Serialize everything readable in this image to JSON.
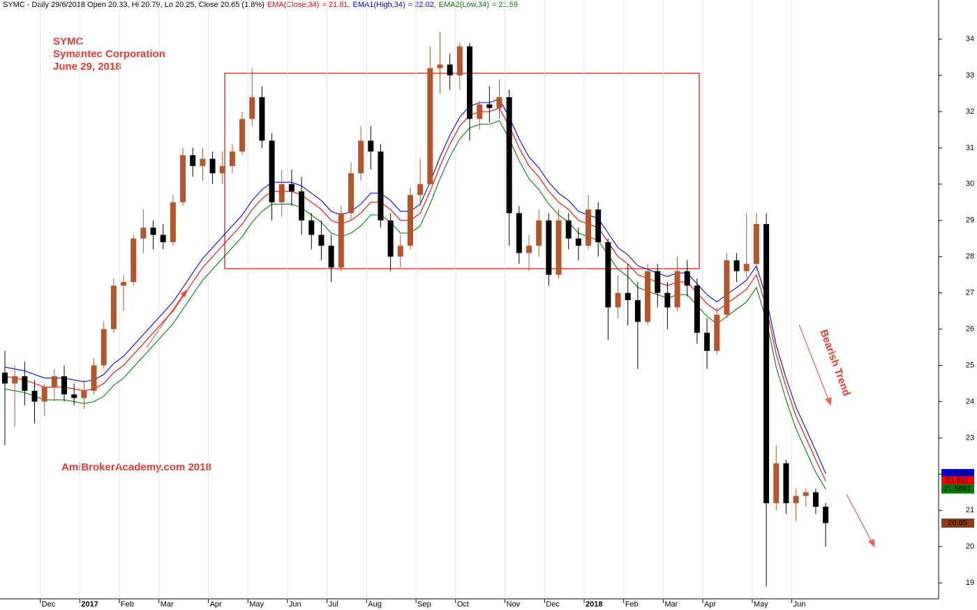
{
  "chart_data": {
    "type": "candlestick",
    "header": "SYMC - Daily 29/6/2018 Open 20.33, Hi 20.79, Lo 20.25, Close 20.65 (1.8%)",
    "annotations": [
      "SYMC",
      "Symantec Corporation",
      "June 29, 2018",
      "AmiBrokerAcademy.com  2018",
      "Bearish Trend"
    ],
    "categories": [
      null,
      null,
      null,
      null,
      "Dec",
      null,
      null,
      null,
      "2017",
      null,
      null,
      null,
      "Feb",
      null,
      null,
      null,
      "Mar",
      null,
      null,
      null,
      null,
      "Apr",
      null,
      null,
      null,
      "May",
      null,
      null,
      null,
      "Jun",
      null,
      null,
      null,
      "Jul",
      null,
      null,
      null,
      "Aug",
      null,
      null,
      null,
      null,
      "Sep",
      null,
      null,
      null,
      "Oct",
      null,
      null,
      null,
      null,
      "Nov",
      null,
      null,
      null,
      "Dec",
      null,
      null,
      null,
      "2018",
      null,
      null,
      null,
      "Feb",
      null,
      null,
      null,
      "Mar",
      null,
      null,
      null,
      "Apr",
      null,
      null,
      null,
      null,
      "May",
      null,
      null,
      null,
      "Jun",
      null,
      null,
      null
    ],
    "up_color": "#b5562a",
    "down_color": "#000000",
    "open": [
      24.8,
      24.5,
      24.7,
      24.3,
      24.0,
      24.4,
      24.7,
      24.2,
      24.1,
      24.3,
      25.0,
      26.0,
      27.2,
      27.3,
      28.5,
      28.8,
      28.6,
      28.4,
      29.5,
      30.8,
      30.5,
      30.7,
      30.3,
      30.5,
      30.9,
      31.8,
      32.4,
      31.2,
      29.5,
      30.0,
      29.8,
      29.0,
      28.6,
      28.3,
      27.7,
      29.2,
      30.3,
      31.2,
      30.9,
      29.0,
      28.0,
      28.3,
      29.7,
      30.0,
      33.2,
      33.3,
      33.0,
      33.8,
      31.8,
      32.2,
      32.1,
      32.4,
      29.2,
      28.1,
      28.3,
      29.0,
      27.5,
      29.0,
      28.5,
      28.3,
      29.3,
      28.4,
      26.6,
      27.0,
      26.8,
      26.2,
      27.6,
      27.0,
      26.6,
      27.6,
      27.2,
      25.9,
      25.4,
      26.4,
      27.9,
      27.6,
      27.8,
      28.9,
      21.2,
      22.3,
      21.2,
      21.4,
      21.5,
      21.1
    ],
    "high": [
      25.4,
      25.0,
      25.1,
      24.6,
      24.5,
      24.9,
      25.0,
      24.5,
      24.6,
      25.2,
      26.2,
      27.4,
      27.5,
      28.6,
      29.3,
      29.0,
      28.9,
      29.7,
      31.0,
      31.0,
      31.0,
      30.9,
      30.9,
      31.1,
      32.0,
      33.2,
      32.7,
      31.4,
      30.4,
      30.4,
      30.2,
      29.2,
      29.0,
      28.6,
      29.4,
      30.6,
      31.6,
      31.6,
      31.1,
      29.2,
      28.6,
      29.9,
      30.7,
      33.8,
      34.2,
      33.6,
      33.9,
      33.9,
      32.3,
      32.7,
      32.9,
      32.6,
      29.4,
      28.6,
      29.3,
      29.2,
      29.3,
      29.2,
      28.8,
      29.7,
      29.5,
      28.5,
      27.5,
      27.8,
      27.3,
      27.8,
      27.8,
      27.3,
      28.0,
      27.9,
      27.4,
      26.3,
      26.6,
      28.1,
      28.1,
      29.2,
      29.2,
      29.2,
      22.8,
      22.4,
      21.6,
      21.6,
      21.6,
      21.2
    ],
    "low": [
      22.8,
      23.3,
      23.9,
      23.4,
      23.6,
      24.0,
      24.0,
      23.9,
      23.8,
      24.2,
      24.9,
      25.9,
      26.5,
      27.2,
      28.1,
      28.2,
      28.2,
      28.3,
      29.4,
      30.2,
      30.1,
      30.0,
      30.0,
      30.3,
      30.8,
      31.6,
      31.0,
      29.0,
      29.1,
      29.4,
      28.6,
      28.2,
      27.9,
      27.3,
      27.6,
      29.0,
      30.1,
      30.4,
      28.8,
      27.6,
      27.7,
      28.2,
      29.4,
      30.0,
      32.5,
      32.6,
      32.6,
      31.2,
      31.5,
      31.7,
      31.8,
      28.3,
      27.8,
      27.6,
      28.0,
      27.2,
      27.4,
      28.2,
      27.9,
      28.2,
      28.0,
      25.7,
      26.3,
      26.1,
      24.9,
      26.1,
      26.6,
      26.0,
      26.5,
      26.9,
      25.6,
      24.9,
      25.3,
      26.3,
      27.3,
      27.4,
      27.6,
      18.9,
      21.0,
      20.9,
      20.7,
      21.1,
      20.9,
      20.0
    ],
    "close": [
      24.5,
      24.7,
      24.3,
      24.0,
      24.4,
      24.7,
      24.2,
      24.1,
      24.3,
      25.0,
      26.0,
      27.2,
      27.3,
      28.5,
      28.8,
      28.6,
      28.4,
      29.5,
      30.8,
      30.5,
      30.7,
      30.3,
      30.5,
      30.9,
      31.8,
      32.4,
      31.2,
      29.5,
      30.0,
      29.8,
      29.0,
      28.6,
      28.3,
      27.7,
      29.2,
      30.3,
      31.2,
      30.9,
      29.0,
      28.0,
      28.3,
      29.7,
      30.0,
      33.2,
      33.3,
      33.0,
      33.8,
      31.8,
      32.2,
      32.1,
      32.4,
      29.2,
      28.1,
      28.3,
      29.0,
      27.5,
      29.0,
      28.5,
      28.3,
      29.3,
      28.4,
      26.6,
      27.0,
      26.8,
      26.2,
      27.6,
      27.0,
      26.6,
      27.6,
      27.2,
      25.9,
      25.4,
      26.4,
      27.9,
      27.6,
      27.8,
      28.9,
      21.2,
      22.3,
      21.2,
      21.4,
      21.5,
      21.1,
      20.65
    ],
    "series": [
      {
        "name": "EMA(Close,34)",
        "legend_value": "= 21.81,",
        "color": "#ff0000",
        "values": [
          24.7,
          24.65,
          24.6,
          24.5,
          24.4,
          24.4,
          24.4,
          24.35,
          24.3,
          24.35,
          24.5,
          24.8,
          25.0,
          25.3,
          25.6,
          25.9,
          26.2,
          26.5,
          26.9,
          27.3,
          27.7,
          28.0,
          28.3,
          28.6,
          28.9,
          29.3,
          29.6,
          29.8,
          29.8,
          29.8,
          29.7,
          29.5,
          29.3,
          29.0,
          28.9,
          29.0,
          29.2,
          29.5,
          29.5,
          29.3,
          29.0,
          29.0,
          29.2,
          29.8,
          30.5,
          31.1,
          31.6,
          31.9,
          32.0,
          32.0,
          32.1,
          31.6,
          31.0,
          30.5,
          30.2,
          29.8,
          29.5,
          29.3,
          29.0,
          28.9,
          28.8,
          28.4,
          28.0,
          27.8,
          27.5,
          27.4,
          27.3,
          27.2,
          27.3,
          27.3,
          27.0,
          26.7,
          26.5,
          26.7,
          26.9,
          27.1,
          27.5,
          26.6,
          25.3,
          24.4,
          23.6,
          23.0,
          22.4,
          21.81
        ]
      },
      {
        "name": "EMA1(High,34)",
        "legend_value": "= 22.02,",
        "color": "#0000ff",
        "values": [
          24.95,
          24.9,
          24.85,
          24.75,
          24.65,
          24.65,
          24.65,
          24.6,
          24.55,
          24.6,
          24.75,
          25.05,
          25.25,
          25.55,
          25.85,
          26.15,
          26.45,
          26.75,
          27.15,
          27.55,
          27.95,
          28.25,
          28.55,
          28.85,
          29.15,
          29.55,
          29.85,
          30.05,
          30.05,
          30.05,
          29.95,
          29.75,
          29.55,
          29.25,
          29.15,
          29.25,
          29.45,
          29.75,
          29.75,
          29.55,
          29.25,
          29.25,
          29.45,
          30.05,
          30.75,
          31.35,
          31.85,
          32.15,
          32.25,
          32.25,
          32.35,
          31.85,
          31.25,
          30.75,
          30.45,
          30.05,
          29.75,
          29.55,
          29.25,
          29.15,
          29.05,
          28.65,
          28.25,
          28.05,
          27.75,
          27.65,
          27.55,
          27.45,
          27.55,
          27.55,
          27.25,
          26.95,
          26.75,
          26.95,
          27.15,
          27.35,
          27.75,
          26.85,
          25.55,
          24.65,
          23.85,
          23.25,
          22.65,
          22.02
        ]
      },
      {
        "name": "EMA2(Low,34)",
        "legend_value": "= 21.59",
        "color": "#008000",
        "values": [
          24.35,
          24.3,
          24.25,
          24.15,
          24.05,
          24.05,
          24.05,
          24.0,
          23.95,
          24.0,
          24.15,
          24.45,
          24.65,
          24.95,
          25.25,
          25.55,
          25.85,
          26.15,
          26.55,
          26.95,
          27.35,
          27.65,
          27.95,
          28.25,
          28.55,
          28.95,
          29.25,
          29.45,
          29.45,
          29.45,
          29.35,
          29.15,
          28.95,
          28.65,
          28.55,
          28.65,
          28.85,
          29.15,
          29.15,
          28.95,
          28.65,
          28.65,
          28.85,
          29.45,
          30.15,
          30.75,
          31.25,
          31.55,
          31.65,
          31.65,
          31.75,
          31.25,
          30.65,
          30.15,
          29.85,
          29.45,
          29.15,
          28.95,
          28.65,
          28.55,
          28.45,
          28.05,
          27.65,
          27.45,
          27.15,
          27.05,
          26.95,
          26.85,
          26.95,
          26.95,
          26.65,
          26.35,
          26.15,
          26.35,
          26.55,
          26.75,
          27.15,
          26.25,
          24.95,
          24.05,
          23.25,
          22.65,
          22.05,
          21.59
        ]
      }
    ],
    "last_labels": [
      {
        "value": 22.0164,
        "label": "22.0164",
        "color": "#0000ff"
      },
      {
        "value": 21.811,
        "label": "21.811",
        "color": "#ff0000"
      },
      {
        "value": 21.5881,
        "label": "21.5881",
        "color": "#008000"
      },
      {
        "value": 20.65,
        "label": "20.65",
        "color": "#8b3a1a"
      }
    ],
    "ylim": [
      18.56,
      35.08
    ],
    "yticks": [
      19,
      20,
      21,
      22,
      23,
      24,
      25,
      26,
      27,
      28,
      29,
      30,
      31,
      32,
      33,
      34
    ],
    "grid": true
  }
}
